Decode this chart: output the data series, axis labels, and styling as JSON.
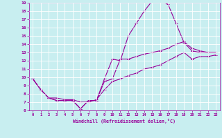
{
  "xlabel": "Windchill (Refroidissement éolien,°C)",
  "bg_color": "#c8eef0",
  "line_color": "#990099",
  "grid_color": "#aadddd",
  "xlim": [
    -0.5,
    23.5
  ],
  "ylim": [
    6,
    19
  ],
  "xticks": [
    0,
    1,
    2,
    3,
    4,
    5,
    6,
    7,
    8,
    9,
    10,
    11,
    12,
    13,
    14,
    15,
    16,
    17,
    18,
    19,
    20,
    21,
    22,
    23
  ],
  "yticks": [
    6,
    7,
    8,
    9,
    10,
    11,
    12,
    13,
    14,
    15,
    16,
    17,
    18,
    19
  ],
  "line1_x": [
    0,
    1,
    2,
    3,
    4,
    5,
    6,
    7,
    8,
    9,
    10,
    11,
    12,
    13,
    14,
    15,
    16,
    17,
    18,
    19,
    20,
    21,
    22,
    23
  ],
  "line1_y": [
    9.8,
    8.5,
    7.5,
    7.2,
    7.2,
    7.2,
    6.2,
    7.2,
    7.2,
    9.8,
    12.2,
    12.0,
    15.0,
    16.5,
    18.0,
    19.2,
    19.3,
    18.8,
    16.5,
    14.2,
    13.2,
    13.0,
    13.0,
    13.0
  ],
  "line2_x": [
    0,
    1,
    2,
    3,
    4,
    5,
    6,
    7,
    8,
    9,
    10,
    11,
    12,
    13,
    14,
    15,
    16,
    17,
    18,
    19,
    20,
    21,
    22,
    23
  ],
  "line2_y": [
    9.8,
    8.5,
    7.5,
    7.2,
    7.2,
    7.2,
    6.2,
    7.2,
    7.2,
    9.5,
    9.8,
    12.2,
    12.2,
    12.5,
    12.8,
    13.0,
    13.2,
    13.5,
    14.0,
    14.3,
    13.5,
    13.2,
    13.0,
    13.0
  ],
  "line3_x": [
    0,
    1,
    2,
    3,
    4,
    5,
    6,
    7,
    8,
    9,
    10,
    11,
    12,
    13,
    14,
    15,
    16,
    17,
    18,
    19,
    20,
    21,
    22,
    23
  ],
  "line3_y": [
    9.8,
    8.5,
    7.5,
    7.5,
    7.3,
    7.3,
    7.0,
    7.0,
    7.3,
    8.5,
    9.5,
    9.8,
    10.2,
    10.5,
    11.0,
    11.2,
    11.5,
    12.0,
    12.5,
    13.0,
    12.2,
    12.5,
    12.5,
    12.7
  ]
}
